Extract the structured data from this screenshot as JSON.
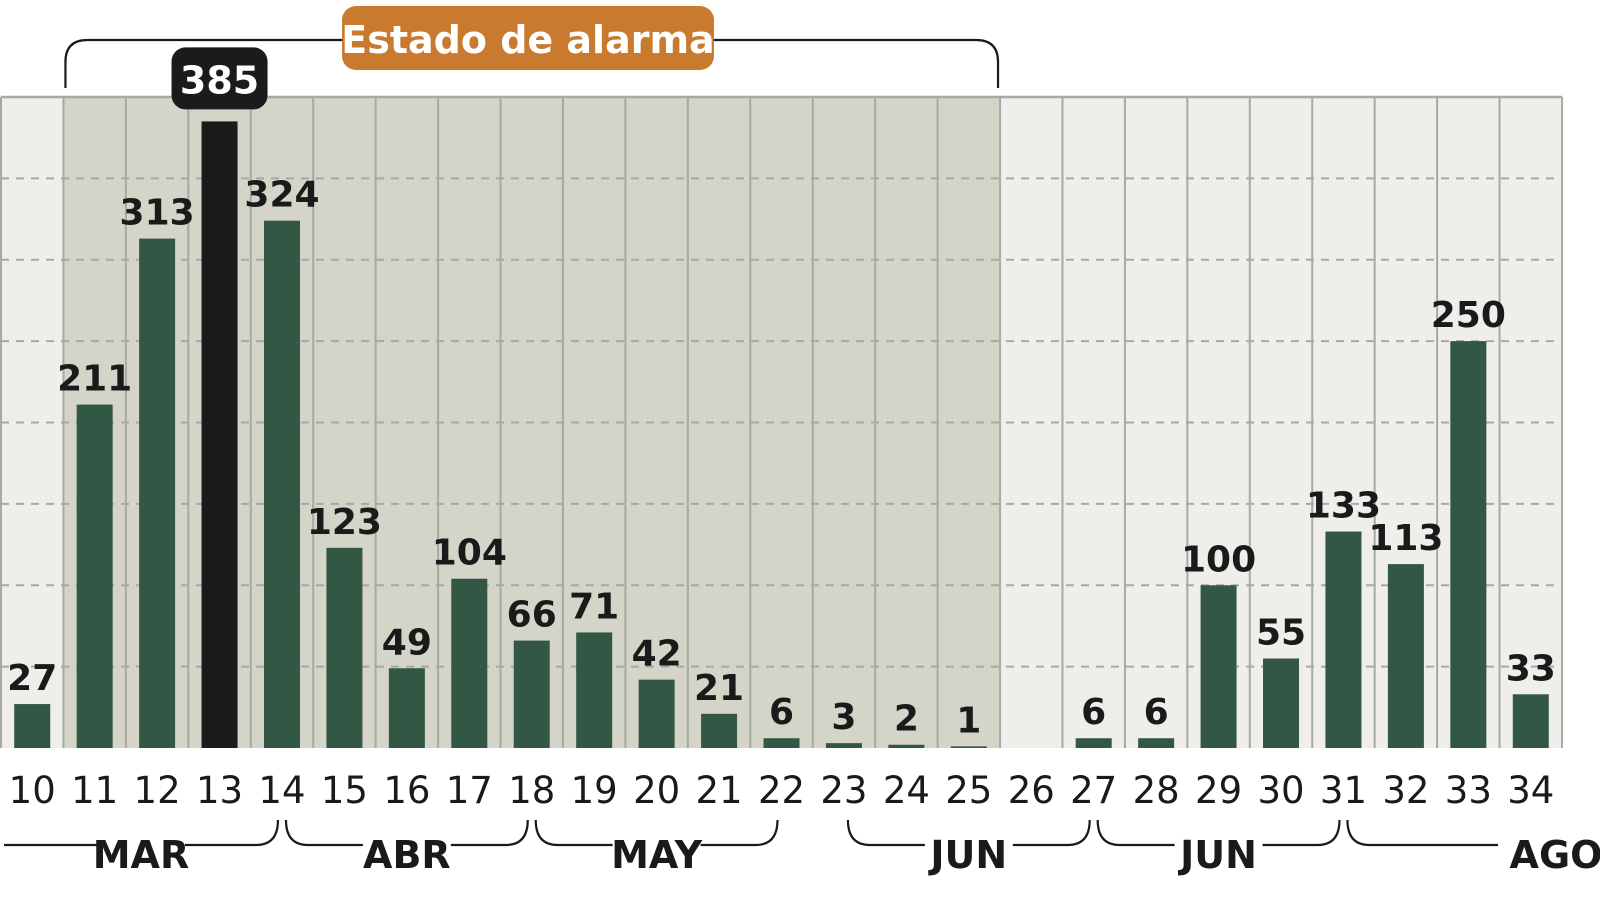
{
  "title_badge": "Estado de alarma",
  "colors": {
    "bar": "#325744",
    "highlight_bar": "#1b1b1b",
    "badge": "#c97a2e",
    "shade": "#d4d4c8",
    "plot_bg": "#efeeea",
    "grid": "#a8a8a4"
  },
  "chart_data": {
    "type": "bar",
    "title": "",
    "xlabel": "",
    "ylabel": "",
    "ylim": [
      0,
      400
    ],
    "grid": true,
    "gridline_step": 50,
    "annotation": {
      "text": "Estado de alarma",
      "from_category": "11",
      "to_category": "25"
    },
    "highlight": {
      "category": "13",
      "value": 385
    },
    "categories": [
      "10",
      "11",
      "12",
      "13",
      "14",
      "15",
      "16",
      "17",
      "18",
      "19",
      "20",
      "21",
      "22",
      "23",
      "24",
      "25",
      "26",
      "27",
      "28",
      "29",
      "30",
      "31",
      "32",
      "33",
      "34"
    ],
    "values": [
      27,
      211,
      313,
      385,
      324,
      123,
      49,
      104,
      66,
      71,
      42,
      21,
      6,
      3,
      2,
      1,
      0,
      6,
      6,
      100,
      55,
      133,
      113,
      250,
      33
    ],
    "value_labels": [
      "27",
      "211",
      "313",
      "385",
      "324",
      "123",
      "49",
      "104",
      "66",
      "71",
      "42",
      "21",
      "6",
      "3",
      "2",
      "1",
      "",
      "6",
      "6",
      "100",
      "55",
      "133",
      "113",
      "250",
      "33"
    ],
    "month_groups": [
      {
        "label": "MAR",
        "from": "10",
        "to": "14"
      },
      {
        "label": "ABR",
        "from": "14",
        "to": "18"
      },
      {
        "label": "MAY",
        "from": "18",
        "to": "22"
      },
      {
        "label": "JUN",
        "from": "23",
        "to": "27"
      },
      {
        "label": "JUN",
        "from": "27",
        "to": "31"
      },
      {
        "label": "AGO",
        "from": "31",
        "to": "34"
      }
    ]
  }
}
